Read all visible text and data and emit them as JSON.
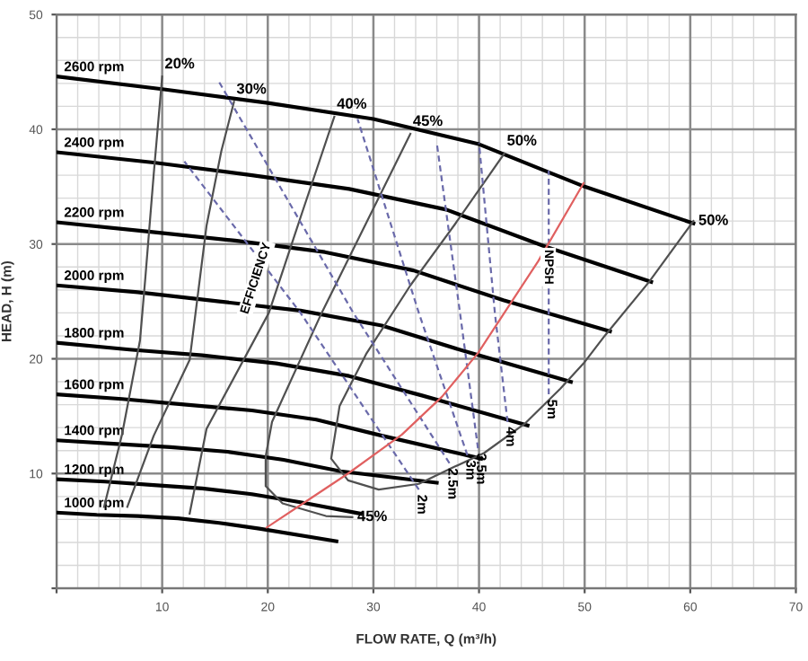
{
  "chart_data": {
    "type": "line",
    "xlabel": "FLOW RATE, Q (m³/h)",
    "ylabel": "HEAD, H (m)",
    "xlim": [
      0,
      70
    ],
    "ylim": [
      0,
      50
    ],
    "xticks": [
      {
        "value": 0,
        "label": null
      },
      10,
      20,
      30,
      40,
      50,
      60,
      70
    ],
    "yticks": [
      {
        "value": 0,
        "label": null
      },
      10,
      20,
      30,
      40,
      50
    ],
    "grid": true,
    "series": [
      {
        "name": "2600 rpm",
        "color": "#000000",
        "line_style": "solid",
        "x": [
          0,
          10,
          20,
          30,
          40,
          50,
          60.3
        ],
        "values": [
          44.6,
          43.5,
          42.3,
          40.9,
          38.7,
          35.0,
          31.8
        ]
      },
      {
        "name": "2400 rpm",
        "color": "#000000",
        "line_style": "solid",
        "x": [
          0,
          9.2,
          18.5,
          27.7,
          36.9,
          46.2,
          56.3
        ],
        "values": [
          38.0,
          37.1,
          36.0,
          34.8,
          33.0,
          29.8,
          26.7
        ]
      },
      {
        "name": "2200 rpm",
        "color": "#000000",
        "line_style": "solid",
        "x": [
          0,
          8.5,
          16.9,
          25.4,
          33.8,
          42.3,
          52.4
        ],
        "values": [
          31.9,
          31.1,
          30.3,
          29.3,
          27.7,
          25.1,
          22.4
        ]
      },
      {
        "name": "2000 rpm",
        "color": "#000000",
        "line_style": "solid",
        "x": [
          0,
          7.7,
          15.4,
          23.1,
          30.8,
          38.5,
          48.7
        ],
        "values": [
          26.4,
          25.8,
          25.0,
          24.2,
          22.9,
          20.7,
          18.0
        ]
      },
      {
        "name": "1800 rpm",
        "color": "#000000",
        "line_style": "solid",
        "x": [
          0,
          6.9,
          13.8,
          20.8,
          27.7,
          34.6,
          44.6
        ],
        "values": [
          21.4,
          20.8,
          20.3,
          19.6,
          18.5,
          16.8,
          14.2
        ]
      },
      {
        "name": "1600 rpm",
        "color": "#000000",
        "line_style": "solid",
        "x": [
          0,
          6.2,
          12.3,
          18.5,
          24.6,
          30.8,
          40.2
        ],
        "values": [
          16.9,
          16.5,
          16.0,
          15.5,
          14.7,
          13.3,
          11.3
        ]
      },
      {
        "name": "1400 rpm",
        "color": "#000000",
        "line_style": "solid",
        "x": [
          0,
          5.4,
          10.8,
          16.2,
          21.5,
          26.9,
          36.0
        ],
        "values": [
          12.9,
          12.6,
          12.3,
          11.9,
          11.2,
          10.2,
          9.2
        ]
      },
      {
        "name": "1200 rpm",
        "color": "#000000",
        "line_style": "solid",
        "x": [
          0,
          4.6,
          9.2,
          13.8,
          18.5,
          23.1,
          28.8
        ],
        "values": [
          9.5,
          9.3,
          9.0,
          8.7,
          8.2,
          7.5,
          6.5
        ]
      },
      {
        "name": "1000 rpm",
        "color": "#000000",
        "line_style": "solid",
        "x": [
          0,
          3.8,
          7.7,
          11.5,
          15.4,
          19.2,
          26.5
        ],
        "values": [
          6.6,
          6.4,
          6.3,
          6.1,
          5.7,
          5.2,
          4.1
        ]
      },
      {
        "name": "20%",
        "color": "#505050",
        "line_style": "solid",
        "x": [
          10.0,
          9.2,
          8.4,
          7.9,
          6.2,
          4.5
        ],
        "values": [
          44.6,
          36.1,
          27.0,
          21.6,
          13.4,
          7.1
        ]
      },
      {
        "name": "30%",
        "color": "#505050",
        "line_style": "solid",
        "x": [
          16.8,
          15.6,
          14.2,
          12.6,
          9.2,
          6.7
        ],
        "values": [
          42.4,
          38.1,
          31.6,
          19.9,
          13.3,
          7.1
        ]
      },
      {
        "name": "40%",
        "color": "#505050",
        "line_style": "solid",
        "x": [
          26.3,
          23.2,
          20.1,
          14.2,
          12.6
        ],
        "values": [
          41.1,
          32.6,
          24.0,
          13.9,
          6.5
        ]
      },
      {
        "name": "45%",
        "color": "#505050",
        "line_style": "solid",
        "x": [
          33.5,
          29.3,
          25.1,
          20.4,
          19.8,
          19.8,
          21.4,
          25.5,
          28.0
        ],
        "values": [
          39.6,
          31.8,
          24.0,
          14.5,
          11.5,
          8.9,
          7.4,
          6.3,
          6.2
        ]
      },
      {
        "name": "50%",
        "color": "#505050",
        "line_style": "solid",
        "x": [
          42.4,
          37.7,
          33.5,
          29.3,
          26.8,
          26.0,
          27.6,
          30.5,
          34.3,
          37.7,
          40.5,
          44.4,
          47.7,
          49.9,
          51.9,
          56.1,
          60.3
        ],
        "values": [
          37.9,
          31.7,
          26.4,
          20.4,
          15.9,
          11.3,
          9.4,
          8.6,
          9.1,
          10.6,
          11.8,
          14.4,
          17.4,
          19.6,
          22.0,
          26.7,
          32.0
        ]
      },
      {
        "name": "2m",
        "color": "#6a6aaa",
        "line_style": "dashed",
        "x": [
          34.3,
          23.1,
          12.1
        ],
        "values": [
          8.6,
          24.0,
          37.2
        ]
      },
      {
        "name": "2.5m",
        "color": "#6a6aaa",
        "line_style": "dashed",
        "x": [
          37.2,
          28.1,
          15.4
        ],
        "values": [
          10.9,
          24.0,
          44.1
        ]
      },
      {
        "name": "3m",
        "color": "#6a6aaa",
        "line_style": "dashed",
        "x": [
          38.9,
          34.3,
          28.5
        ],
        "values": [
          11.6,
          24.0,
          40.9
        ]
      },
      {
        "name": "3.5m",
        "color": "#6a6aaa",
        "line_style": "dashed",
        "x": [
          39.9,
          38.2,
          36.0
        ],
        "values": [
          12.2,
          24.0,
          38.8
        ]
      },
      {
        "name": "4m",
        "color": "#6a6aaa",
        "line_style": "dashed",
        "x": [
          42.7,
          41.5,
          40.0
        ],
        "values": [
          14.5,
          24.0,
          38.8
        ]
      },
      {
        "name": "5m",
        "color": "#6a6aaa",
        "line_style": "dashed",
        "x": [
          46.6,
          46.6,
          46.6
        ],
        "values": [
          16.9,
          24.0,
          36.4
        ]
      },
      {
        "color": "#e06060",
        "line_style": "solid",
        "x": [
          19.9,
          23.5,
          27.6,
          32.7,
          36.5,
          39.9,
          45.6,
          49.9
        ],
        "values": [
          5.3,
          7.5,
          10.0,
          13.4,
          16.7,
          20.5,
          28.5,
          35.3
        ]
      }
    ],
    "annotations": [
      {
        "text": "45%",
        "x": 28.0,
        "y": 6.2
      },
      {
        "text": "50%",
        "x": 60.3,
        "y": 32.0
      },
      "EFFICIENCY",
      "NPSH"
    ]
  }
}
